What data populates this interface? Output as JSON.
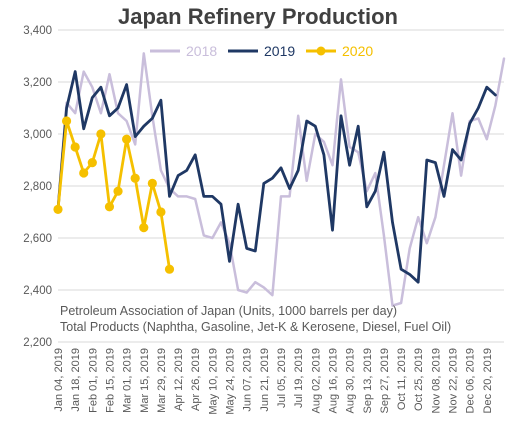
{
  "chart_data": {
    "type": "line",
    "title": "Japan Refinery Production",
    "ylim": [
      2200,
      3400
    ],
    "yticks": [
      "2,200",
      "2,400",
      "2,600",
      "2,800",
      "3,000",
      "3,200",
      "3,400"
    ],
    "ytick_values": [
      2200,
      2400,
      2600,
      2800,
      3000,
      3200,
      3400
    ],
    "x_labels": [
      "Jan 04, 2019",
      "Jan 18, 2019",
      "Feb 01, 2019",
      "Feb 15, 2019",
      "Mar 01, 2019",
      "Mar 15, 2019",
      "Mar 29, 2019",
      "Apr 12, 2019",
      "Apr 26, 2019",
      "May 10, 2019",
      "May 24, 2019",
      "Jun 07, 2019",
      "Jun 21, 2019",
      "Jul 05, 2019",
      "Jul 19, 2019",
      "Aug 02, 2019",
      "Aug 16, 2019",
      "Aug 30, 2019",
      "Sep 13, 2019",
      "Sep 27, 2019",
      "Oct 11, 2019",
      "Oct 25, 2019",
      "Nov 08, 2019",
      "Nov 22, 2019",
      "Dec 06, 2019",
      "Dec 20, 2019"
    ],
    "grid": "horizontal",
    "legend_position": "top",
    "series": [
      {
        "name": "2018",
        "color": "#c9bedb",
        "values": [
          2720,
          3120,
          3080,
          3240,
          3180,
          3080,
          3230,
          3080,
          3050,
          2960,
          3310,
          3070,
          2860,
          2790,
          2760,
          2760,
          2750,
          2610,
          2600,
          2660,
          2580,
          2400,
          2390,
          2430,
          2410,
          2380,
          2760,
          2760,
          3070,
          2820,
          3000,
          2970,
          2880,
          3210,
          2950,
          2930,
          2780,
          2850,
          2610,
          2340,
          2350,
          2560,
          2680,
          2580,
          2680,
          2880,
          3080,
          2840,
          3050,
          3060,
          2980,
          3110,
          3290
        ]
      },
      {
        "name": "2019",
        "color": "#1f3864",
        "values": [
          2710,
          3100,
          3240,
          3020,
          3140,
          3180,
          3070,
          3100,
          3190,
          2990,
          3030,
          3060,
          3130,
          2760,
          2840,
          2860,
          2920,
          2760,
          2760,
          2730,
          2510,
          2730,
          2560,
          2550,
          2810,
          2830,
          2870,
          2790,
          2860,
          3050,
          3030,
          2920,
          2630,
          3070,
          2880,
          3030,
          2720,
          2780,
          2930,
          2660,
          2480,
          2460,
          2430,
          2900,
          2890,
          2760,
          2940,
          2900,
          3040,
          3100,
          3180,
          3150
        ]
      },
      {
        "name": "2020",
        "color": "#f5c000",
        "values": [
          2710,
          3050,
          2950,
          2850,
          2890,
          3000,
          2720,
          2780,
          2980,
          2830,
          2640,
          2810,
          2700,
          2480
        ]
      }
    ],
    "annotations": [
      "Petroleum Association of Japan  (Units, 1000 barrels per day)",
      "Total Products (Naphtha, Gasoline, Jet-K & Kerosene, Diesel, Fuel Oil)"
    ]
  }
}
